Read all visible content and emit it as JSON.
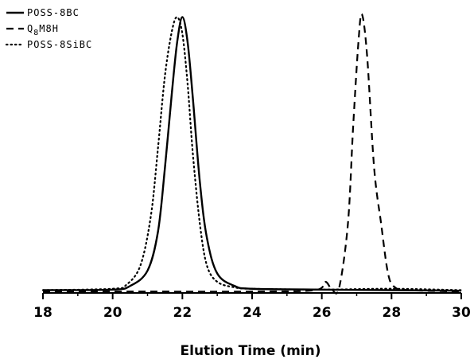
{
  "chart_data": {
    "type": "line",
    "xlabel": "Elution Time (min)",
    "ylabel": "",
    "xlim": [
      18,
      30
    ],
    "ylim": [
      0,
      1
    ],
    "xticks": [
      18,
      20,
      22,
      24,
      26,
      28,
      30
    ],
    "grid": false,
    "legend_position": "top-left",
    "series": [
      {
        "name": "POSS-8BC",
        "name_display": {
          "base": "POSS-8BC",
          "sub": ""
        },
        "style": "solid",
        "color": "#000000",
        "x": [
          18,
          20,
          20.5,
          21,
          21.3,
          21.5,
          21.7,
          21.85,
          22,
          22.15,
          22.3,
          22.5,
          22.7,
          23,
          23.5,
          24,
          26,
          28,
          30
        ],
        "y": [
          0.01,
          0.012,
          0.025,
          0.08,
          0.22,
          0.45,
          0.72,
          0.9,
          0.99,
          0.9,
          0.7,
          0.4,
          0.2,
          0.07,
          0.025,
          0.015,
          0.012,
          0.01,
          0.008
        ]
      },
      {
        "name": "Q8M8H",
        "name_display": {
          "base": "Q",
          "sub": "8",
          "rest": "M8H"
        },
        "style": "dashed",
        "color": "#000000",
        "x": [
          18,
          21,
          24,
          25.8,
          26.1,
          26.3,
          26.5,
          26.75,
          26.9,
          27.05,
          27.15,
          27.3,
          27.5,
          27.7,
          27.9,
          28.1,
          28.5,
          30
        ],
        "y": [
          0.005,
          0.005,
          0.005,
          0.01,
          0.04,
          0.01,
          0.02,
          0.25,
          0.6,
          0.9,
          1.0,
          0.85,
          0.45,
          0.25,
          0.07,
          0.02,
          0.01,
          0.005
        ]
      },
      {
        "name": "POSS-8SiBC",
        "name_display": {
          "base": "POSS-8SiBC",
          "sub": ""
        },
        "style": "dotted",
        "color": "#000000",
        "x": [
          18,
          20,
          20.4,
          20.8,
          21.1,
          21.3,
          21.5,
          21.7,
          21.85,
          22,
          22.15,
          22.3,
          22.5,
          22.7,
          23,
          23.5,
          24,
          26,
          28,
          30
        ],
        "y": [
          0.01,
          0.015,
          0.03,
          0.1,
          0.28,
          0.52,
          0.78,
          0.94,
          0.99,
          0.93,
          0.75,
          0.5,
          0.25,
          0.1,
          0.04,
          0.02,
          0.015,
          0.012,
          0.015,
          0.01
        ]
      }
    ]
  }
}
